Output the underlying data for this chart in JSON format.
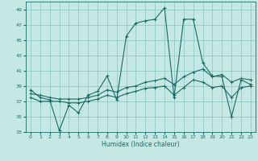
{
  "xlabel": "Humidex (Indice chaleur)",
  "xlim": [
    -0.5,
    23.5
  ],
  "ylim": [
    33,
    50
  ],
  "yticks": [
    33,
    35,
    37,
    39,
    41,
    43,
    45,
    47,
    49
  ],
  "xticks": [
    0,
    1,
    2,
    3,
    4,
    5,
    6,
    7,
    8,
    9,
    10,
    11,
    12,
    13,
    14,
    15,
    16,
    17,
    18,
    19,
    20,
    21,
    22,
    23
  ],
  "background_color": "#c5e8e5",
  "grid_color": "#88c4c0",
  "line_color": "#1a6b65",
  "line1_x": [
    0,
    1,
    2,
    3,
    4,
    5,
    6,
    7,
    8,
    9,
    10,
    11,
    12,
    13,
    14,
    15,
    16,
    17,
    18,
    19,
    20,
    21,
    22,
    23
  ],
  "line1_y": [
    38.5,
    37.5,
    37.2,
    33.2,
    36.5,
    35.5,
    37.8,
    38.3,
    40.3,
    37.2,
    45.5,
    47.2,
    47.5,
    47.7,
    49.2,
    37.5,
    47.7,
    47.7,
    42.0,
    40.3,
    40.2,
    35.0,
    39.8,
    39.2
  ],
  "line2_x": [
    0,
    1,
    2,
    3,
    4,
    5,
    6,
    7,
    8,
    9,
    10,
    11,
    12,
    13,
    14,
    15,
    16,
    17,
    18,
    19,
    20,
    21,
    22,
    23
  ],
  "line2_y": [
    38.0,
    37.8,
    37.5,
    37.3,
    37.3,
    37.3,
    37.5,
    37.8,
    38.5,
    38.2,
    38.8,
    39.0,
    39.5,
    39.7,
    40.0,
    39.2,
    40.2,
    40.8,
    41.2,
    40.2,
    40.5,
    39.5,
    40.0,
    39.8
  ],
  "line3_x": [
    0,
    1,
    2,
    3,
    4,
    5,
    6,
    7,
    8,
    9,
    10,
    11,
    12,
    13,
    14,
    15,
    16,
    17,
    18,
    19,
    20,
    21,
    22,
    23
  ],
  "line3_y": [
    37.5,
    37.0,
    37.0,
    37.0,
    36.8,
    36.8,
    37.0,
    37.3,
    37.8,
    37.5,
    38.0,
    38.3,
    38.7,
    38.8,
    39.0,
    37.8,
    38.8,
    39.8,
    39.5,
    38.8,
    39.0,
    37.5,
    38.8,
    39.0
  ]
}
